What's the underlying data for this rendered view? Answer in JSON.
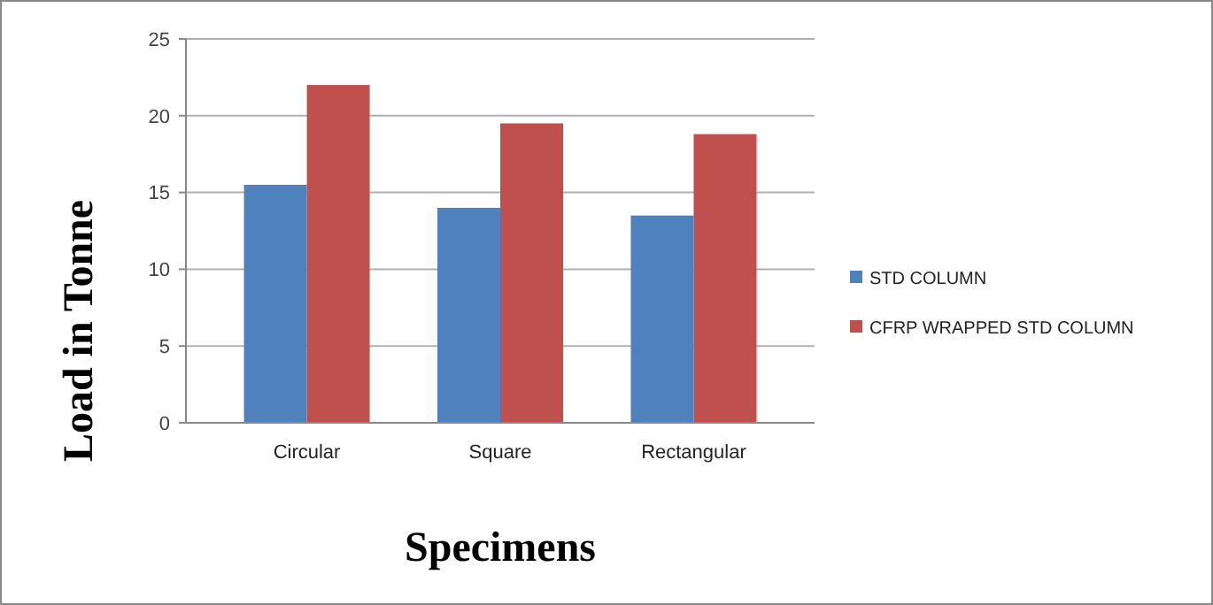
{
  "chart_data": {
    "type": "bar",
    "xlabel": "Specimens",
    "ylabel": "Load in Tonne",
    "categories": [
      "Circular",
      "Square",
      "Rectangular"
    ],
    "series": [
      {
        "name": "STD COLUMN",
        "color": "#4f81bd",
        "values": [
          15.5,
          14,
          13.5
        ]
      },
      {
        "name": "CFRP WRAPPED STD COLUMN",
        "color": "#c0504d",
        "values": [
          22,
          19.5,
          18.8
        ]
      }
    ],
    "ylim": [
      0,
      25
    ],
    "yticks": [
      0,
      5,
      10,
      15,
      20,
      25
    ],
    "grid": "y",
    "legend": "right"
  }
}
